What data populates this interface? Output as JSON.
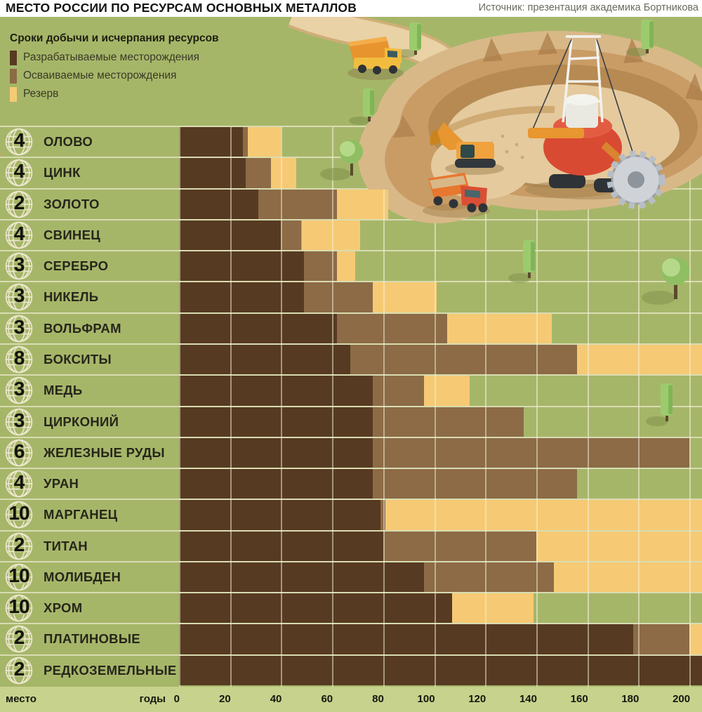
{
  "header": {
    "title": "МЕСТО РОССИИ ПО РЕСУРСАМ ОСНОВНЫХ МЕТАЛЛОВ",
    "source": "Источник: презентация академика Бортникова"
  },
  "legend": {
    "title": "Сроки добычи и исчерпания ресурсов",
    "items": [
      {
        "label": "Разрабатываемые месторождения",
        "color": "#573a22"
      },
      {
        "label": "Осваиваемые месторождения",
        "color": "#8c6b46"
      },
      {
        "label": "Резерв",
        "color": "#f6ca74"
      }
    ]
  },
  "axis": {
    "place_label": "место",
    "years_label": "годы",
    "ticks": [
      0,
      20,
      40,
      60,
      80,
      100,
      120,
      140,
      160,
      180,
      200
    ]
  },
  "chart_data": {
    "type": "bar",
    "orientation": "horizontal-stacked",
    "title": "МЕСТО РОССИИ ПО РЕСУРСАМ ОСНОВНЫХ МЕТАЛЛОВ",
    "xlabel": "годы",
    "xlim": [
      0,
      205
    ],
    "grid": true,
    "legend_position": "top-left",
    "note": "values are cumulative years (end of each stacked segment); 205 = bar runs past 200 to the image edge; rank = Russia's world place shown on globe icon",
    "series_names": [
      "Разрабатываемые месторождения",
      "Осваиваемые месторождения",
      "Резерв"
    ],
    "rows": [
      {
        "rank": "4",
        "metal": "ОЛОВО",
        "developed": 25,
        "developing": 27,
        "reserve": 40
      },
      {
        "rank": "4",
        "metal": "ЦИНК",
        "developed": 26,
        "developing": 36,
        "reserve": 46
      },
      {
        "rank": "2",
        "metal": "ЗОЛОТО",
        "developed": 31,
        "developing": 62,
        "reserve": 82
      },
      {
        "rank": "4",
        "metal": "СВИНЕЦ",
        "developed": 40,
        "developing": 48,
        "reserve": 71
      },
      {
        "rank": "3",
        "metal": "СЕРЕБРО",
        "developed": 49,
        "developing": 62,
        "reserve": 69
      },
      {
        "rank": "3",
        "metal": "НИКЕЛЬ",
        "developed": 49,
        "developing": 76,
        "reserve": 101
      },
      {
        "rank": "3",
        "metal": "ВОЛЬФРАМ",
        "developed": 62,
        "developing": 105,
        "reserve": 146
      },
      {
        "rank": "8",
        "metal": "БОКСИТЫ",
        "developed": 67,
        "developing": 156,
        "reserve": 205
      },
      {
        "rank": "3",
        "metal": "МЕДЬ",
        "developed": 76,
        "developing": 96,
        "reserve": 114
      },
      {
        "rank": "3",
        "metal": "ЦИРКОНИЙ",
        "developed": 76,
        "developing": 135,
        "reserve": null
      },
      {
        "rank": "6",
        "metal": "ЖЕЛЕЗНЫЕ РУДЫ",
        "developed": 76,
        "developing": 200,
        "reserve": null
      },
      {
        "rank": "4",
        "metal": "УРАН",
        "developed": 76,
        "developing": 156,
        "reserve": null
      },
      {
        "rank": "10",
        "metal": "МАРГАНЕЦ",
        "developed": 79,
        "developing": 81,
        "reserve": 205
      },
      {
        "rank": "2",
        "metal": "ТИТАН",
        "developed": 80,
        "developing": 140,
        "reserve": 205
      },
      {
        "rank": "10",
        "metal": "МОЛИБДЕН",
        "developed": 96,
        "developing": 147,
        "reserve": 205
      },
      {
        "rank": "10",
        "metal": "ХРОМ",
        "developed": 107,
        "developing": null,
        "reserve": 139
      },
      {
        "rank": "2",
        "metal": "ПЛАТИНОВЫЕ",
        "developed": 178,
        "developing": 200,
        "reserve": 205
      },
      {
        "rank": "2",
        "metal": "РЕДКОЗЕМЕЛЬНЫЕ",
        "developed": 205,
        "developing": null,
        "reserve": null
      }
    ]
  },
  "colors": {
    "background_green": "#a6b669",
    "axis_strip": "#c7d28c",
    "developed": "#573a22",
    "developing": "#8c6b46",
    "reserve": "#f6ca74",
    "gridline": "#f0eed2",
    "text_dark": "#26261a"
  },
  "icons": {
    "row_icon": "globe-icon",
    "illustration": "open-pit-mine-with-trucks-excavator-bucket-wheel"
  }
}
